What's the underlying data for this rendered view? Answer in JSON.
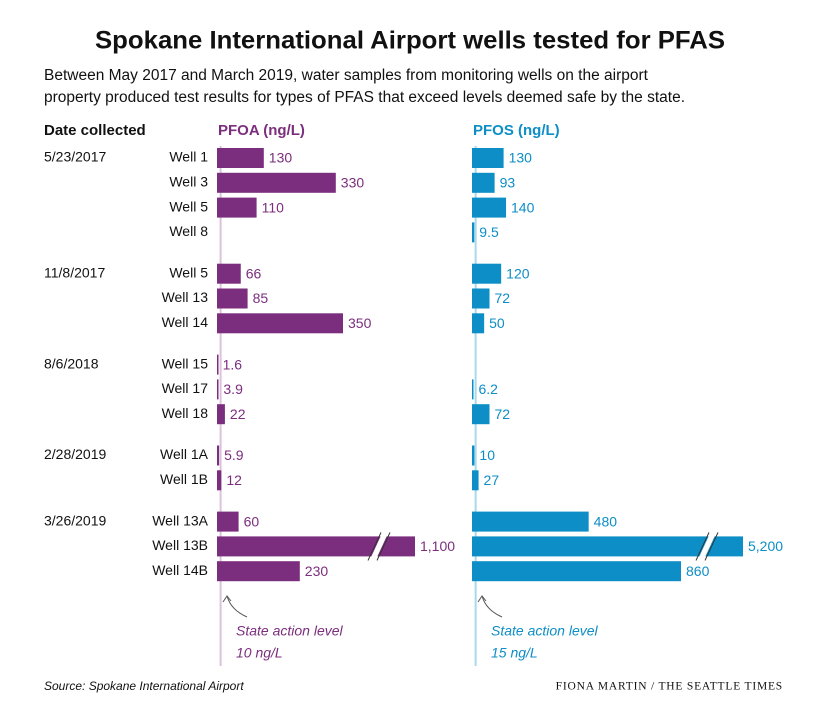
{
  "chart_data": {
    "type": "bar",
    "orientation": "horizontal",
    "title": "Spokane International Airport wells tested for PFAS",
    "subtitle": [
      "Between May 2017 and March 2019, water samples from monitoring wells on the airport",
      "property produced test results for types of PFAS that exceed levels deemed safe by the state."
    ],
    "date_header": "Date collected",
    "dates": [
      "5/23/2017",
      null,
      null,
      null,
      "11/8/2017",
      null,
      null,
      "8/6/2018",
      null,
      null,
      "2/28/2019",
      null,
      "3/26/2019",
      null,
      null
    ],
    "categories": [
      "Well 1",
      "Well 3",
      "Well 5",
      "Well 8",
      "Well 5",
      "Well 13",
      "Well 14",
      "Well 15",
      "Well 17",
      "Well 18",
      "Well 1A",
      "Well 1B",
      "Well 13A",
      "Well 13B",
      "Well 14B"
    ],
    "series": [
      {
        "name": "PFOA (ng/L)",
        "color": "#7b2e7d",
        "threshold_color": "#dcc0dd",
        "values": [
          130,
          330,
          110,
          null,
          66,
          85,
          350,
          1.6,
          3.9,
          22,
          5.9,
          12,
          60,
          1100,
          230
        ],
        "value_labels": [
          "130",
          "330",
          "110",
          null,
          "66",
          "85",
          "350",
          "1.6",
          "3.9",
          "22",
          "5.9",
          "12",
          "60",
          "1,100",
          "230"
        ],
        "xlim": [
          0,
          550
        ],
        "threshold": 10,
        "threshold_name": "State action level",
        "threshold_label": "10 ng/L"
      },
      {
        "name": "PFOS (ng/L)",
        "color": "#0d8ec6",
        "threshold_color": "#a9d8ec",
        "values": [
          130,
          93,
          140,
          9.5,
          120,
          72,
          50,
          null,
          6.2,
          72,
          10,
          27,
          480,
          5200,
          860
        ],
        "value_labels": [
          "130",
          "93",
          "140",
          "9.5",
          "120",
          "72",
          "50",
          null,
          "6.2",
          "72",
          "10",
          "27",
          "480",
          "5,200",
          "860"
        ],
        "xlim": [
          0,
          1115
        ],
        "threshold": 15,
        "threshold_name": "State action level",
        "threshold_label": "15 ng/L"
      }
    ],
    "source": "Source: Spokane International Airport",
    "credit": "FIONA MARTIN / THE SEATTLE TIMES"
  }
}
